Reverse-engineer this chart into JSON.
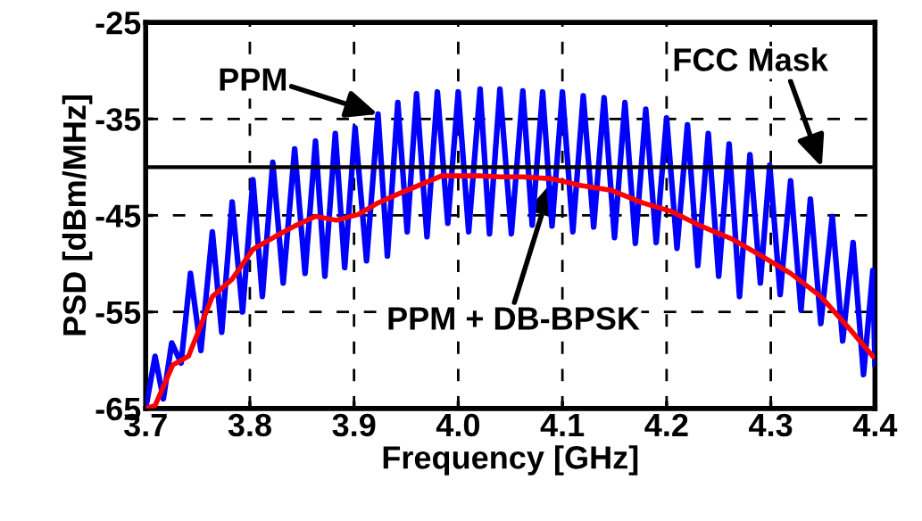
{
  "chart_data": {
    "type": "line",
    "xlabel": "Frequency [GHz]",
    "ylabel": "PSD [dBm/MHz]",
    "xlim": [
      3.7,
      4.4
    ],
    "ylim": [
      -65,
      -25
    ],
    "xticks": [
      {
        "value": 3.7,
        "label": "3.7"
      },
      {
        "value": 3.8,
        "label": "3.8"
      },
      {
        "value": 3.9,
        "label": "3.9"
      },
      {
        "value": 4.0,
        "label": "4.0"
      },
      {
        "value": 4.1,
        "label": "4.1"
      },
      {
        "value": 4.2,
        "label": "4.2"
      },
      {
        "value": 4.3,
        "label": "4.3"
      },
      {
        "value": 4.4,
        "label": "4.4"
      }
    ],
    "yticks": [
      -65,
      -55,
      -45,
      -35,
      -25
    ],
    "grid": true,
    "line_style": "solid",
    "marker": "none",
    "series": [
      {
        "color": "#0000ff",
        "x": [
          3.7,
          3.709,
          3.717,
          3.725,
          3.734,
          3.743,
          3.753,
          3.764,
          3.773,
          3.783,
          3.793,
          3.803,
          3.812,
          3.822,
          3.832,
          3.843,
          3.853,
          3.863,
          3.872,
          3.882,
          3.891,
          3.901,
          3.912,
          3.923,
          3.932,
          3.942,
          3.951,
          3.96,
          3.97,
          3.98,
          3.99,
          4.0,
          4.01,
          4.021,
          4.03,
          4.04,
          4.051,
          4.062,
          4.071,
          4.081,
          4.09,
          4.1,
          4.11,
          4.12,
          4.13,
          4.14,
          4.15,
          4.16,
          4.17,
          4.18,
          4.19,
          4.2,
          4.21,
          4.22,
          4.23,
          4.24,
          4.25,
          4.26,
          4.27,
          4.28,
          4.29,
          4.299,
          4.309,
          4.319,
          4.329,
          4.338,
          4.348,
          4.359,
          4.369,
          4.379,
          4.389,
          4.398,
          4.4
        ],
        "values": [
          -65,
          -59.6,
          -64,
          -58.2,
          -60.3,
          -51,
          -59,
          -46.7,
          -57.1,
          -43.6,
          -55,
          -41.3,
          -53.4,
          -39.5,
          -52,
          -38.1,
          -51,
          -37.3,
          -51.3,
          -36.5,
          -50.4,
          -35.9,
          -49.7,
          -34.5,
          -49.2,
          -33.3,
          -46.7,
          -32.4,
          -47.2,
          -32.2,
          -45.8,
          -32.2,
          -46.7,
          -31.9,
          -46.9,
          -31.9,
          -46.9,
          -32.1,
          -46,
          -32.2,
          -46.1,
          -32.2,
          -46.7,
          -32.6,
          -46.2,
          -32.8,
          -47.3,
          -33.3,
          -47.9,
          -34,
          -47.8,
          -34.9,
          -48.4,
          -35.6,
          -50.2,
          -36.5,
          -51.3,
          -37.6,
          -53.4,
          -38.7,
          -52,
          -39.8,
          -53.2,
          -41.4,
          -54.8,
          -43.3,
          -56.2,
          -45.1,
          -58,
          -47.8,
          -61.5,
          -50.7,
          -60.4
        ]
      },
      {
        "color": "#ff0000",
        "x": [
          3.7,
          3.709,
          3.726,
          3.741,
          3.764,
          3.783,
          3.803,
          3.824,
          3.843,
          3.863,
          3.883,
          3.904,
          3.923,
          3.944,
          3.964,
          3.984,
          4.001,
          4.021,
          4.041,
          4.061,
          4.09,
          4.118,
          4.147,
          4.177,
          4.205,
          4.233,
          4.262,
          4.291,
          4.319,
          4.348,
          4.376,
          4.398
        ],
        "values": [
          -65,
          -64.7,
          -60.5,
          -59.6,
          -53.4,
          -51.6,
          -48.5,
          -47.2,
          -46.1,
          -45.1,
          -45.5,
          -44.9,
          -43.7,
          -42.7,
          -41.8,
          -40.9,
          -40.9,
          -40.9,
          -41,
          -41,
          -41.2,
          -41.9,
          -42.4,
          -43.7,
          -44.6,
          -46.1,
          -47.4,
          -49.2,
          -51,
          -53.4,
          -56.8,
          -59.6
        ]
      }
    ],
    "ref_lines": [
      {
        "axis": "y",
        "value": -40,
        "color": "#000000",
        "line_style": "solid"
      }
    ],
    "annotations": [
      {
        "text": "PPM",
        "x": 3.923,
        "y": -34.5
      },
      {
        "text": "FCC Mask",
        "x": 4.349,
        "y": -40
      },
      {
        "text": "PPM + DB-BPSK",
        "x": 4.09,
        "y": -41.5
      }
    ]
  }
}
